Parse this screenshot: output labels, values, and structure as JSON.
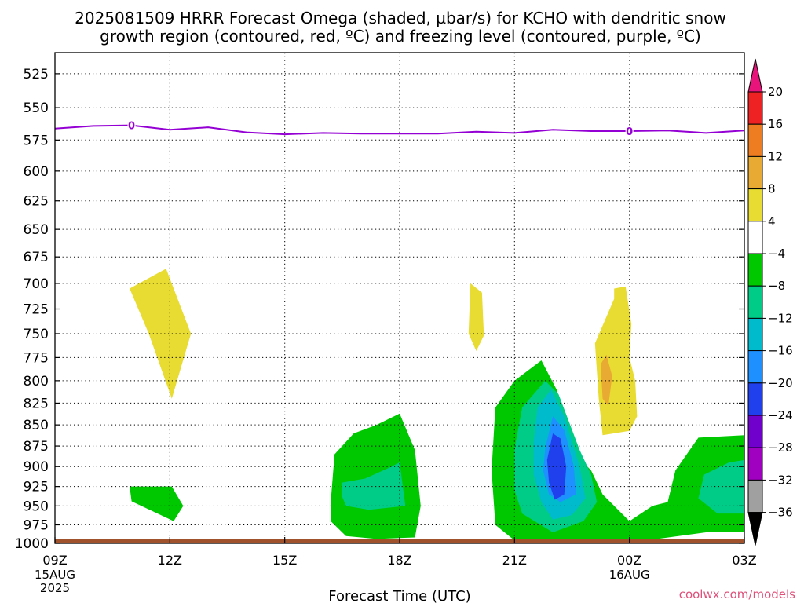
{
  "title": {
    "line1": "2025081509 HRRR Forecast Omega (shaded, µbar/s) for KCHO with dendritic snow",
    "line2": "growth region (contoured, red, ºC) and freezing level (contoured, purple, ºC)"
  },
  "watermark": "coolwx.com/models",
  "chart_data": {
    "type": "heatmap",
    "title": "2025081509 HRRR Forecast Omega (shaded, µbar/s) for KCHO with dendritic snow growth region (contoured, red, ºC) and freezing level (contoured, purple, ºC)",
    "xlabel": "Forecast Time (UTC)",
    "ylabel": "",
    "x_range_hours": [
      9,
      27
    ],
    "y_scale": "log",
    "y_range_hpa": [
      1000,
      500
    ],
    "y_inverted": true,
    "grid": true,
    "x_ticks": [
      {
        "label": "09Z",
        "hour": 9,
        "sub": [
          "15AUG",
          "2025"
        ]
      },
      {
        "label": "12Z",
        "hour": 12,
        "sub": []
      },
      {
        "label": "15Z",
        "hour": 15,
        "sub": []
      },
      {
        "label": "18Z",
        "hour": 18,
        "sub": []
      },
      {
        "label": "21Z",
        "hour": 21,
        "sub": []
      },
      {
        "label": "00Z",
        "hour": 24,
        "sub": [
          "16AUG"
        ]
      },
      {
        "label": "03Z",
        "hour": 27,
        "sub": []
      }
    ],
    "y_ticks": [
      525,
      550,
      575,
      600,
      625,
      650,
      675,
      700,
      725,
      750,
      775,
      800,
      825,
      850,
      875,
      900,
      925,
      950,
      975,
      1000
    ],
    "colorbar": {
      "labels": [
        "20",
        "16",
        "12",
        "8",
        "4",
        "−4",
        "−8",
        "−12",
        "−16",
        "−20",
        "−24",
        "−28",
        "−32",
        "−36"
      ],
      "bins": [
        {
          "range": "16 to 20",
          "color": "#ee2222"
        },
        {
          "range": "12 to 16",
          "color": "#ee7d22"
        },
        {
          "range": "8 to 12",
          "color": "#e8aa32"
        },
        {
          "range": "4 to 8",
          "color": "#e8dc32"
        },
        {
          "range": "-4 to 4",
          "color": "#ffffff"
        },
        {
          "range": "-8 to -4",
          "color": "#00c800"
        },
        {
          "range": "-12 to -8",
          "color": "#00cc88"
        },
        {
          "range": "-16 to -12",
          "color": "#00bbcc"
        },
        {
          "range": "-20 to -16",
          "color": "#1e90ff"
        },
        {
          "range": "-24 to -20",
          "color": "#2040ee"
        },
        {
          "range": "-28 to -24",
          "color": "#7000cc"
        },
        {
          "range": "-32 to -28",
          "color": "#a000c0"
        },
        {
          "range": "-36 to -32",
          "color": "#a0a0a0"
        }
      ],
      "over_color": "#e8147c",
      "under_color": "#000000"
    },
    "freezing_level": {
      "label": "0",
      "color": "#9400d3",
      "points": [
        [
          9,
          566
        ],
        [
          10,
          564
        ],
        [
          11,
          563.5
        ],
        [
          12,
          567
        ],
        [
          13,
          565
        ],
        [
          14,
          569
        ],
        [
          15,
          570.5
        ],
        [
          16,
          569.5
        ],
        [
          17,
          570
        ],
        [
          18,
          570
        ],
        [
          19,
          570
        ],
        [
          20,
          568.5
        ],
        [
          21,
          569.5
        ],
        [
          22,
          567
        ],
        [
          23,
          568
        ],
        [
          24,
          568
        ],
        [
          25,
          567.5
        ],
        [
          26,
          569.5
        ],
        [
          27,
          567.5
        ]
      ]
    },
    "surface_strip_color": "#a0522d",
    "omega_regions": [
      {
        "name": "yellow-cell-1",
        "color": "#e8dc32",
        "points": [
          [
            10.95,
            705
          ],
          [
            11.9,
            686
          ],
          [
            12.55,
            750
          ],
          [
            12.05,
            820
          ],
          [
            11.45,
            750
          ]
        ]
      },
      {
        "name": "green-cell-1",
        "color": "#00c800",
        "points": [
          [
            10.95,
            925
          ],
          [
            12.05,
            925
          ],
          [
            12.35,
            950
          ],
          [
            12.1,
            970
          ],
          [
            11.0,
            944
          ]
        ]
      },
      {
        "name": "yellow-cell-2",
        "color": "#e8dc32",
        "points": [
          [
            19.8,
            750
          ],
          [
            19.85,
            700
          ],
          [
            20.15,
            709
          ],
          [
            20.2,
            752
          ],
          [
            20.0,
            768
          ]
        ]
      },
      {
        "name": "green-cell-2",
        "color": "#00c800",
        "points": [
          [
            16.2,
            945
          ],
          [
            16.3,
            885
          ],
          [
            16.8,
            860
          ],
          [
            17.4,
            850
          ],
          [
            18.0,
            837
          ],
          [
            18.4,
            880
          ],
          [
            18.55,
            950
          ],
          [
            18.4,
            992
          ],
          [
            17.4,
            994
          ],
          [
            16.6,
            990
          ],
          [
            16.2,
            970
          ]
        ]
      },
      {
        "name": "teal-cell-2",
        "color": "#00cc88",
        "points": [
          [
            16.5,
            938
          ],
          [
            16.5,
            920
          ],
          [
            17.1,
            915
          ],
          [
            17.7,
            902
          ],
          [
            18.0,
            895
          ],
          [
            18.15,
            950
          ],
          [
            17.2,
            955
          ],
          [
            16.6,
            950
          ]
        ]
      },
      {
        "name": "green-cell-3",
        "color": "#00c800",
        "points": [
          [
            20.4,
            905
          ],
          [
            20.5,
            830
          ],
          [
            21.0,
            800
          ],
          [
            21.7,
            778
          ],
          [
            22.1,
            810
          ],
          [
            22.7,
            890
          ],
          [
            23.0,
            905
          ],
          [
            23.3,
            935
          ],
          [
            24.0,
            970
          ],
          [
            24.6,
            950
          ],
          [
            25.0,
            945
          ],
          [
            25.2,
            905
          ],
          [
            25.8,
            865
          ],
          [
            27.0,
            862
          ],
          [
            27.0,
            985
          ],
          [
            26.0,
            985
          ],
          [
            24.6,
            995
          ],
          [
            23.0,
            999
          ],
          [
            21.7,
            999
          ],
          [
            21.0,
            996
          ],
          [
            20.5,
            975
          ]
        ]
      },
      {
        "name": "teal-cell-3",
        "color": "#00cc88",
        "points": [
          [
            21.0,
            878
          ],
          [
            21.2,
            830
          ],
          [
            21.8,
            800
          ],
          [
            22.15,
            815
          ],
          [
            22.7,
            880
          ],
          [
            23.0,
            910
          ],
          [
            23.15,
            945
          ],
          [
            22.8,
            970
          ],
          [
            22.0,
            985
          ],
          [
            21.2,
            960
          ],
          [
            21.0,
            930
          ]
        ]
      },
      {
        "name": "teal-cell-4",
        "color": "#00cc88",
        "points": [
          [
            25.8,
            940
          ],
          [
            25.95,
            910
          ],
          [
            26.6,
            895
          ],
          [
            27.0,
            892
          ],
          [
            27.0,
            960
          ],
          [
            26.3,
            960
          ]
        ]
      },
      {
        "name": "cyan-cell-3",
        "color": "#00bbcc",
        "points": [
          [
            21.5,
            870
          ],
          [
            21.6,
            830
          ],
          [
            21.95,
            810
          ],
          [
            22.3,
            840
          ],
          [
            22.7,
            900
          ],
          [
            22.85,
            940
          ],
          [
            22.5,
            962
          ],
          [
            22.0,
            968
          ],
          [
            21.7,
            945
          ],
          [
            21.5,
            910
          ]
        ]
      },
      {
        "name": "blue-cell-3",
        "color": "#1e90ff",
        "points": [
          [
            21.8,
            878
          ],
          [
            22.0,
            840
          ],
          [
            22.3,
            856
          ],
          [
            22.55,
            900
          ],
          [
            22.6,
            935
          ],
          [
            22.2,
            945
          ],
          [
            21.9,
            935
          ],
          [
            21.75,
            905
          ]
        ]
      },
      {
        "name": "darkblue-cell-3",
        "color": "#2040ee",
        "points": [
          [
            21.85,
            892
          ],
          [
            22.0,
            860
          ],
          [
            22.2,
            866
          ],
          [
            22.35,
            900
          ],
          [
            22.3,
            935
          ],
          [
            22.05,
            942
          ],
          [
            21.9,
            920
          ]
        ]
      },
      {
        "name": "yellow-cell-5",
        "color": "#e8dc32",
        "points": [
          [
            23.6,
            715
          ],
          [
            23.6,
            705
          ],
          [
            23.9,
            703
          ],
          [
            24.05,
            740
          ],
          [
            24.0,
            775
          ],
          [
            24.15,
            800
          ],
          [
            24.2,
            840
          ],
          [
            24.0,
            857
          ],
          [
            23.3,
            862
          ],
          [
            23.2,
            820
          ],
          [
            23.1,
            760
          ]
        ]
      },
      {
        "name": "orange-cell-5",
        "color": "#e8aa32",
        "points": [
          [
            23.25,
            782
          ],
          [
            23.4,
            772
          ],
          [
            23.55,
            795
          ],
          [
            23.45,
            828
          ],
          [
            23.3,
            820
          ]
        ]
      }
    ]
  }
}
